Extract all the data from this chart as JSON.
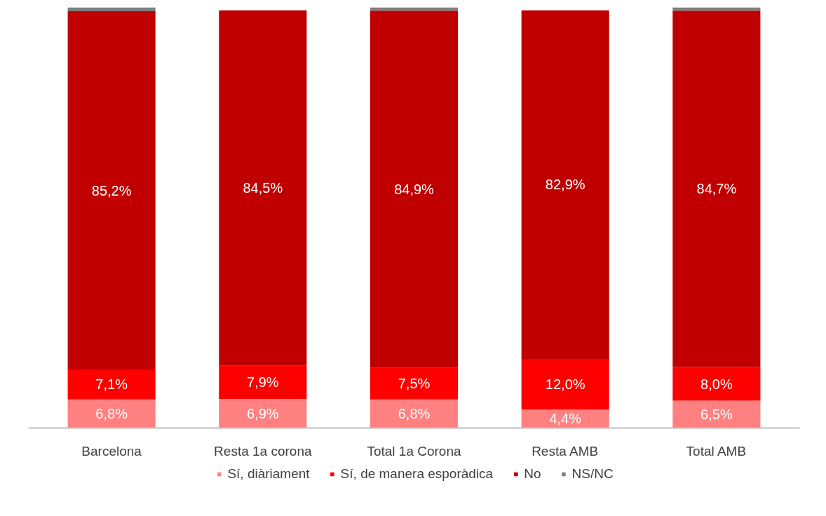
{
  "chart_data": {
    "type": "bar",
    "stacked": true,
    "legend": "bottom",
    "grid": false,
    "categories": [
      "Barcelona",
      "Resta 1a corona",
      "Total 1a Corona",
      "Resta AMB",
      "Total AMB"
    ],
    "series": [
      {
        "name": "Sí, diàriament",
        "color": "#ff8080",
        "values": [
          6.8,
          6.9,
          6.8,
          4.4,
          6.5
        ],
        "value_labels": [
          "6,8%",
          "6,9%",
          "6,8%",
          "4,4%",
          "6,5%"
        ]
      },
      {
        "name": "Sí, de manera esporàdica",
        "color": "#ff0000",
        "values": [
          7.1,
          7.9,
          7.5,
          12.0,
          8.0
        ],
        "value_labels": [
          "7,1%",
          "7,9%",
          "7,5%",
          "12,0%",
          "8,0%"
        ]
      },
      {
        "name": "No",
        "color": "#c00000",
        "values": [
          85.2,
          84.5,
          84.9,
          82.9,
          84.7
        ],
        "value_labels": [
          "85,2%",
          "84,5%",
          "84,9%",
          "82,9%",
          "84,7%"
        ]
      },
      {
        "name": "NS/NC",
        "color": "#808080",
        "values": [
          0.9,
          null,
          0.8,
          null,
          0.8
        ]
      }
    ]
  }
}
